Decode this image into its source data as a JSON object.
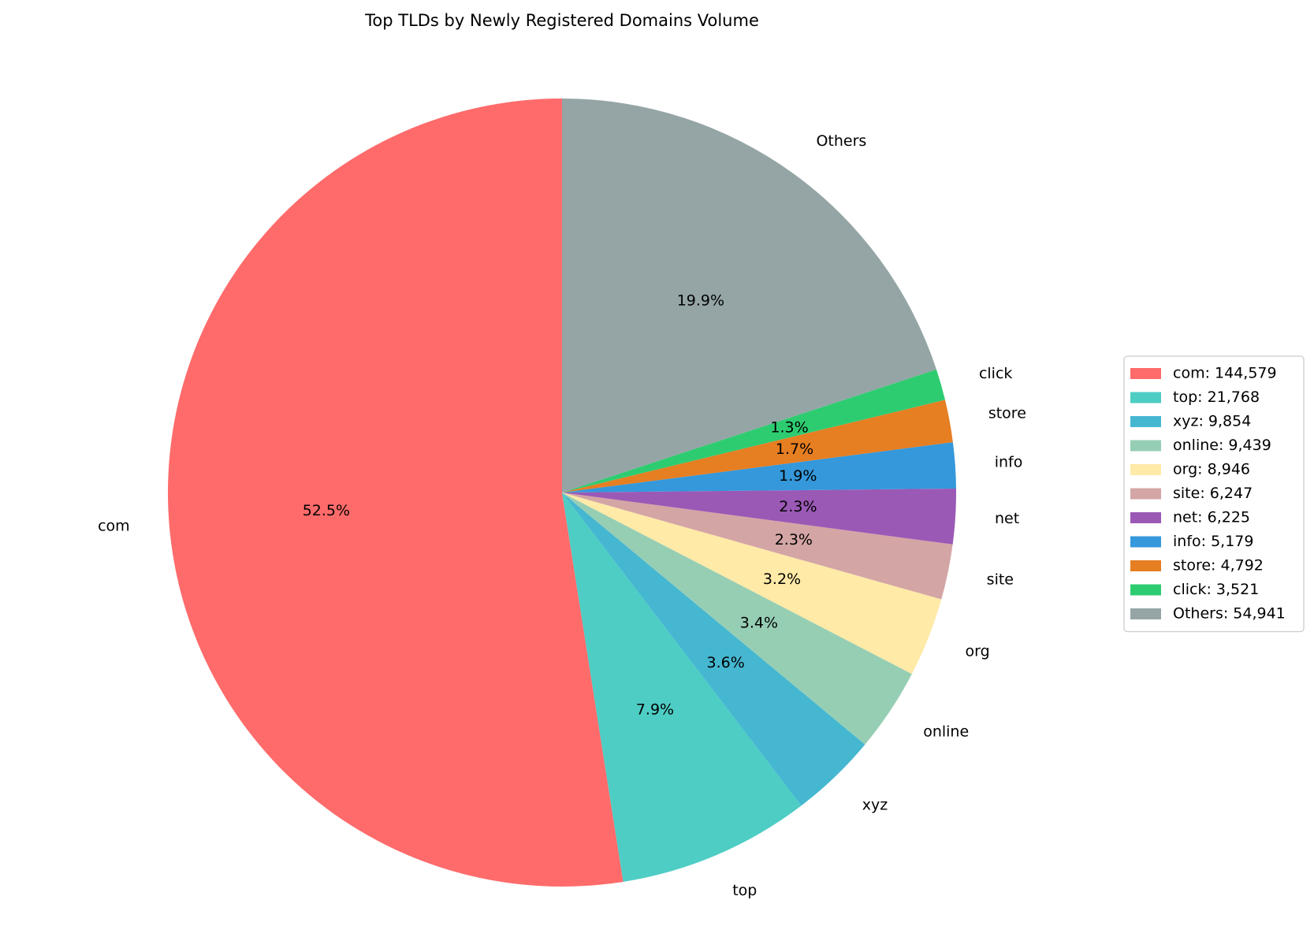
{
  "chart_data": {
    "type": "pie",
    "title": "Top TLDs by Newly Registered Domains Volume",
    "categories": [
      "com",
      "top",
      "xyz",
      "online",
      "org",
      "site",
      "net",
      "info",
      "store",
      "click",
      "Others"
    ],
    "values": [
      144579,
      21768,
      9854,
      9439,
      8946,
      6247,
      6225,
      5179,
      4792,
      3521,
      54941
    ],
    "percent_labels": [
      "52.5%",
      "7.9%",
      "3.6%",
      "3.4%",
      "3.2%",
      "2.3%",
      "2.3%",
      "1.9%",
      "1.7%",
      "1.3%",
      "19.9%"
    ],
    "legend_entries": [
      "com: 144,579",
      "top: 21,768",
      "xyz: 9,854",
      "online: 9,439",
      "org: 8,946",
      "site: 6,247",
      "net: 6,225",
      "info: 5,179",
      "store: 4,792",
      "click: 3,521",
      "Others: 54,941"
    ],
    "colors": [
      "#ff6b6b",
      "#4ecdc4",
      "#45b7d1",
      "#96ceb4",
      "#ffeaa7",
      "#d4a5a5",
      "#9b59b6",
      "#3498db",
      "#e67e22",
      "#2ecc71",
      "#95a5a6"
    ],
    "start_angle_deg": 90,
    "direction": "counterclockwise",
    "legend_position": "right"
  }
}
